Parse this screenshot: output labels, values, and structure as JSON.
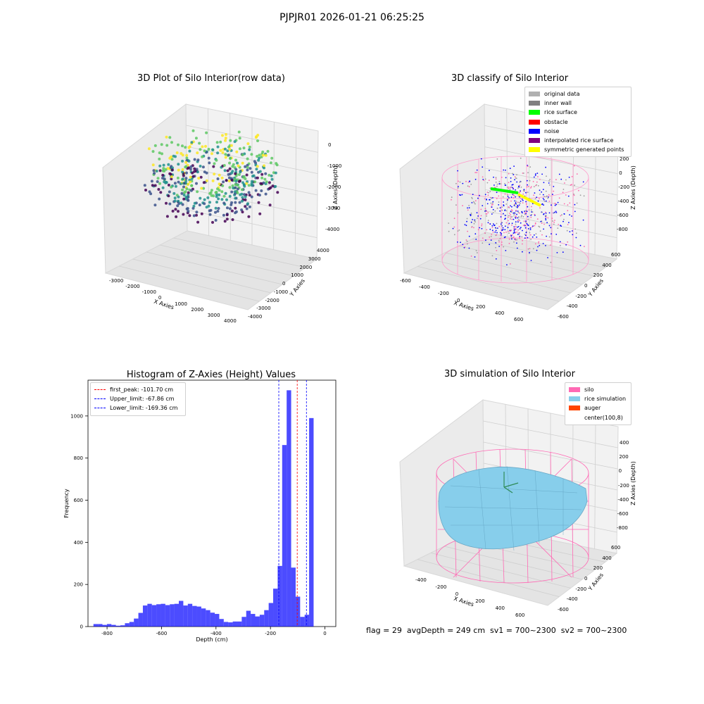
{
  "header": {
    "title": "PJPJR01 2026-01-21 06:25:25"
  },
  "panels": {
    "raw": {
      "title": "3D Plot of Silo Interior(row data)",
      "xlabel": "X Axies",
      "ylabel": "Y Axies",
      "zlabel": "Z Axies (Depth)",
      "xticks": [
        "-3000",
        "-2000",
        "-1000",
        "0",
        "1000",
        "2000",
        "3000",
        "4000"
      ],
      "yticks": [
        "-4000",
        "-3000",
        "-2000",
        "-1000",
        "0",
        "1000",
        "2000",
        "3000",
        "4000"
      ],
      "zticks": [
        "0",
        "-1000",
        "-2000",
        "-3000",
        "-4000"
      ]
    },
    "classify": {
      "title": "3D classify of Silo Interior",
      "xlabel": "X Axies",
      "ylabel": "Y Axies",
      "zlabel": "Z Axies (Depth)",
      "xticks": [
        "-600",
        "-400",
        "-200",
        "0",
        "200",
        "400",
        "600"
      ],
      "yticks": [
        "-600",
        "-400",
        "-200",
        "0",
        "200",
        "400",
        "600"
      ],
      "zticks": [
        "200",
        "0",
        "-200",
        "-400",
        "-600",
        "-800"
      ],
      "legend": [
        {
          "label": "original data",
          "color": "#b0b0b0"
        },
        {
          "label": "inner wall",
          "color": "#808080"
        },
        {
          "label": "rice surface",
          "color": "#00ff00"
        },
        {
          "label": "obstacle",
          "color": "#ff0000"
        },
        {
          "label": "noise",
          "color": "#0000ff"
        },
        {
          "label": "interpolated rice surface",
          "color": "#800080"
        },
        {
          "label": "symmetric generated points",
          "color": "#ffff00"
        }
      ]
    },
    "simulation": {
      "title": "3D simulation of Silo Interior",
      "xlabel": "X Axies",
      "ylabel": "Y Axies",
      "zlabel": "Z Axies (Depth)",
      "xticks": [
        "-400",
        "-200",
        "0",
        "200",
        "400",
        "600"
      ],
      "yticks": [
        "-600",
        "-400",
        "-200",
        "0",
        "200",
        "400",
        "600"
      ],
      "zticks": [
        "400",
        "200",
        "0",
        "-200",
        "-400",
        "-600",
        "-800"
      ],
      "legend": [
        {
          "label": "silo",
          "color": "#ff69b4"
        },
        {
          "label": "rice simulation",
          "color": "#87ceeb"
        },
        {
          "label": "auger",
          "color": "#ff4500"
        },
        {
          "label": "center(100,8)",
          "color": "#ffffff"
        }
      ]
    }
  },
  "chart_data": {
    "type": "bar",
    "title": "Histogram of Z-Axies (Height) Values",
    "xlabel": "Depth (cm)",
    "ylabel": "Frequency",
    "xlim": [
      -870,
      40
    ],
    "ylim": [
      0,
      1170
    ],
    "xticks": [
      -800,
      -600,
      -400,
      -200,
      0
    ],
    "yticks": [
      0,
      200,
      400,
      600,
      800,
      1000
    ],
    "bin_start": -850,
    "bin_width": 16.5,
    "values": [
      12,
      12,
      8,
      12,
      8,
      4,
      6,
      16,
      22,
      38,
      65,
      100,
      108,
      102,
      106,
      108,
      102,
      106,
      108,
      122,
      100,
      108,
      98,
      95,
      86,
      78,
      66,
      60,
      36,
      22,
      20,
      24,
      24,
      46,
      75,
      60,
      48,
      56,
      78,
      112,
      180,
      288,
      862,
      1122,
      280,
      142,
      46,
      56,
      990
    ],
    "color": "#0000ff",
    "vlines": [
      {
        "label": "first_peak: -101.70 cm",
        "x": -101.7,
        "color": "#ff0000"
      },
      {
        "label": "Upper_limit: -67.86 cm",
        "x": -67.86,
        "color": "#0000ff"
      },
      {
        "label": "Lower_limit: -169.36 cm",
        "x": -169.36,
        "color": "#0000ff"
      }
    ],
    "legend_position": "upper-left"
  },
  "footer": {
    "text": "flag = 29  avgDepth = 249 cm  sv1 = 700~2300  sv2 = 700~2300"
  }
}
